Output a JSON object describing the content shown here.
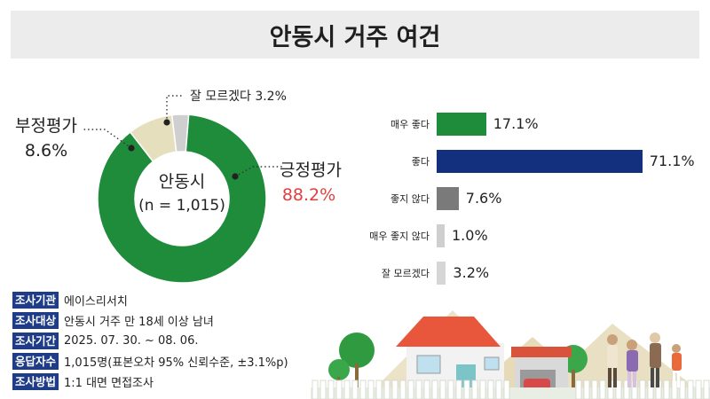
{
  "title": "안동시 거주 여건",
  "chart_data": [
    {
      "type": "pie",
      "center_label": [
        "안동시",
        "(n = 1,015)"
      ],
      "slices": [
        {
          "name": "긍정평가",
          "value": 88.2,
          "color": "#1e8c3a",
          "label_value": "88.2%"
        },
        {
          "name": "부정평가",
          "value": 8.6,
          "color": "#e6dfbd",
          "label_value": "8.6%"
        },
        {
          "name": "잘 모르겠다",
          "value": 3.2,
          "color": "#cfcfcf",
          "label_value": "3.2%"
        }
      ],
      "accent_color": "#e04040"
    },
    {
      "type": "bar",
      "orientation": "horizontal",
      "categories": [
        "매우 좋다",
        "좋다",
        "좋지 않다",
        "매우 좋지 않다",
        "잘 모르겠다"
      ],
      "values": [
        17.1,
        71.1,
        7.6,
        1.0,
        3.2
      ],
      "value_labels": [
        "17.1%",
        "71.1%",
        "7.6%",
        "1.0%",
        "3.2%"
      ],
      "colors": [
        "#1e8c3a",
        "#13307f",
        "#7a7a7a",
        "#cfcfcf",
        "#d6d6d6"
      ],
      "xlim": [
        0,
        100
      ]
    }
  ],
  "survey_info": [
    {
      "key": "조사기관",
      "value": "에이스리서치"
    },
    {
      "key": "조사대상",
      "value": "안동시 거주 만 18세 이상 남녀"
    },
    {
      "key": "조사기간",
      "value": "2025. 07. 30. ~ 08. 06."
    },
    {
      "key": "응답자수",
      "value": "1,015명(표본오차 95% 신뢰수준, ±3.1%p)"
    },
    {
      "key": "조사방법",
      "value": "1:1 대면 면접조사"
    }
  ]
}
